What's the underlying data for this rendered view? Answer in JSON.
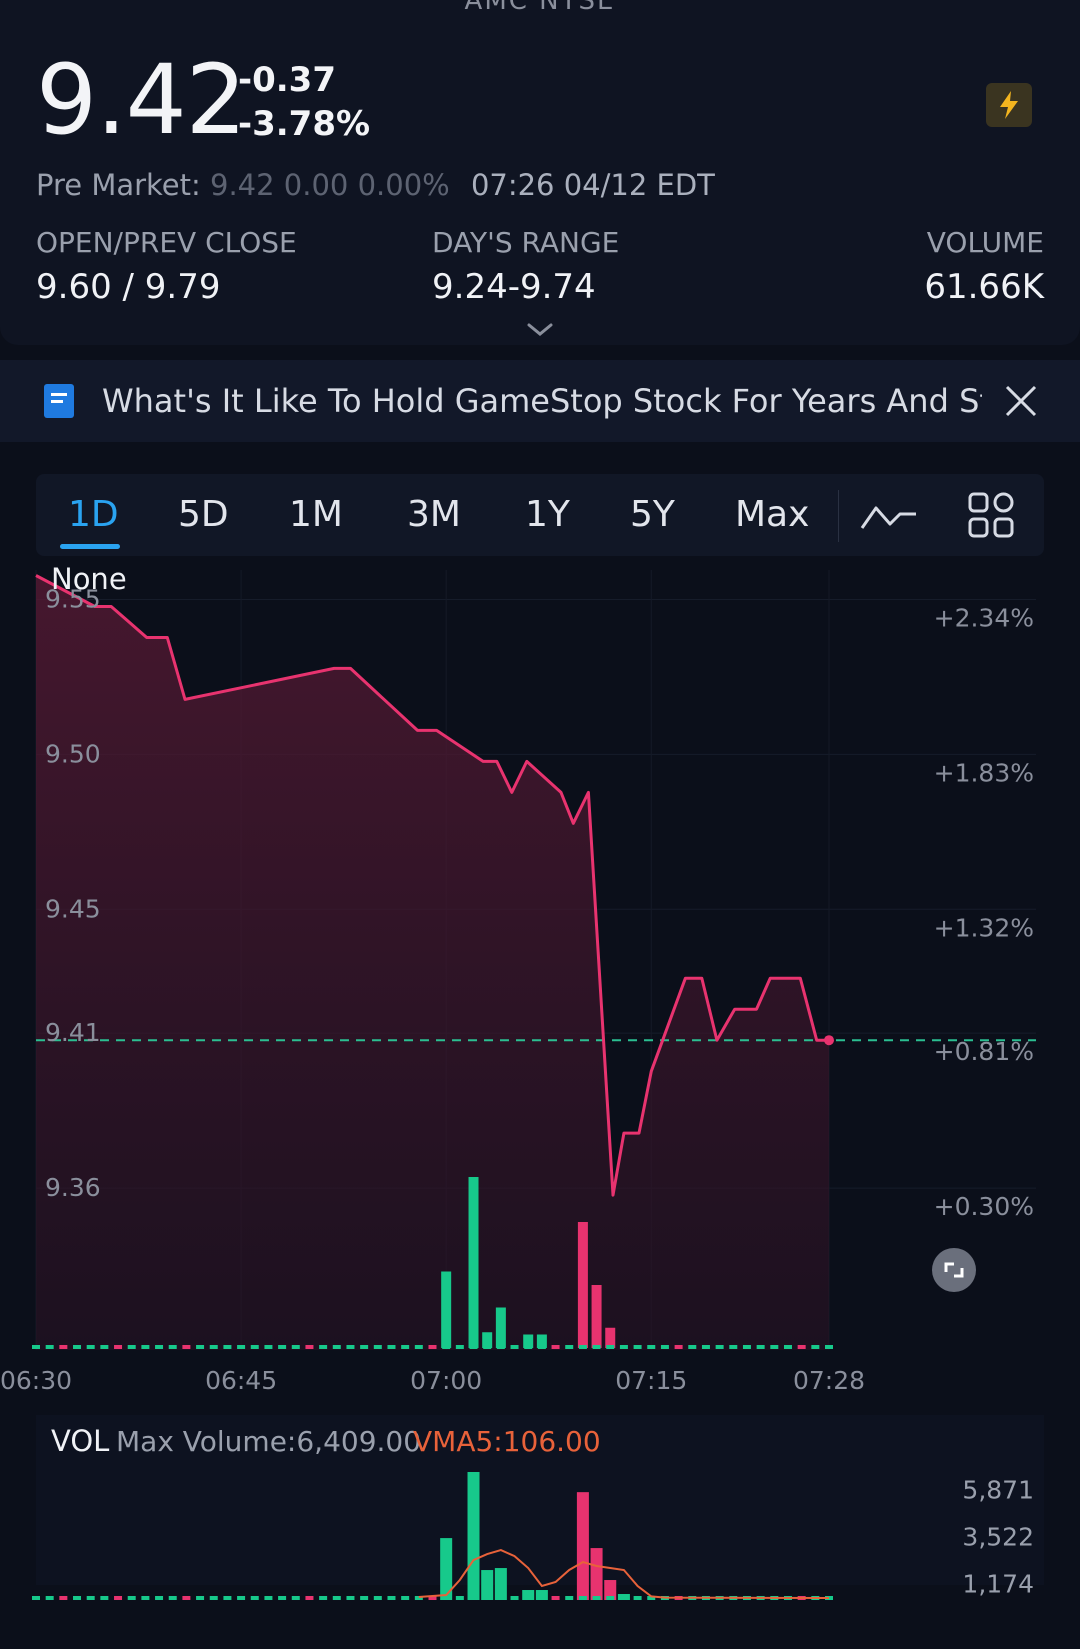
{
  "header": {
    "ticker": "AMC  NYSE"
  },
  "quote": {
    "price": "9.42",
    "change": "-0.37",
    "change_pct": "-3.78%",
    "premarket_label": "Pre Market:",
    "premarket_values": "9.42 0.00 0.00%",
    "premarket_time": "07:26 04/12 EDT"
  },
  "stats": {
    "open_prev_label": "OPEN/PREV CLOSE",
    "open_prev_value": "9.60 / 9.79",
    "range_label": "DAY'S RANGE",
    "range_value": "9.24-9.74",
    "volume_label": "VOLUME",
    "volume_value": "61.66K"
  },
  "news": {
    "headline": "What's It Like To Hold GameStop Stock For Years And Still"
  },
  "tabs": [
    "1D",
    "5D",
    "1M",
    "3M",
    "1Y",
    "5Y",
    "Max"
  ],
  "active_tab": "1D",
  "icons": {
    "bolt": "lightning-bolt-icon",
    "news": "document-icon",
    "close": "close-icon",
    "line_style": "line-chart-icon",
    "grid": "grid-icon",
    "fullscreen": "fullscreen-icon",
    "expand": "chevron-down-icon"
  },
  "colors": {
    "line": "#e8336f",
    "up": "#17c98b",
    "down": "#e8336f",
    "vma": "#e8623a",
    "accent": "#2aa3f0",
    "bolt": "#f3b51f"
  },
  "chart_data": [
    {
      "type": "line",
      "legend_label": "None",
      "x_tick_labels": [
        "06:30",
        "06:45",
        "07:00",
        "07:15",
        "07:28"
      ],
      "x_tick_minutes": [
        0,
        15,
        30,
        45,
        58
      ],
      "y_tick_labels": [
        "9.55",
        "9.50",
        "9.45",
        "9.41",
        "9.36"
      ],
      "y_tick_values": [
        9.55,
        9.5,
        9.45,
        9.41,
        9.36
      ],
      "y_right_tick_labels": [
        "+2.34%",
        "+1.83%",
        "+1.32%",
        "+0.81%",
        "+0.30%"
      ],
      "ylim": [
        9.32,
        9.575
      ],
      "reference_line": 9.42,
      "grid": true,
      "series": [
        {
          "x": [
            0,
            4.3,
            5.5,
            8.1,
            9.6,
            10.9,
            21.8,
            23.0,
            27.9,
            29.3,
            32.7,
            33.7,
            34.8,
            35.9,
            38.4,
            39.3,
            40.4,
            42.2,
            43.0,
            44.1,
            45.0,
            47.5,
            48.7,
            49.8,
            51.1,
            52.7,
            53.7,
            55.9,
            57.1,
            58.0
          ],
          "y": [
            9.57,
            9.56,
            9.56,
            9.55,
            9.55,
            9.53,
            9.54,
            9.54,
            9.52,
            9.52,
            9.51,
            9.51,
            9.5,
            9.51,
            9.5,
            9.49,
            9.5,
            9.37,
            9.39,
            9.39,
            9.41,
            9.44,
            9.44,
            9.42,
            9.43,
            9.43,
            9.44,
            9.44,
            9.42,
            9.42
          ]
        }
      ],
      "volume_overlay": {
        "x": [
          30,
          32,
          33,
          34,
          36,
          37,
          40,
          41,
          42
        ],
        "values": [
          1700,
          3800,
          350,
          900,
          300,
          300,
          2800,
          1400,
          450
        ],
        "direction": [
          "up",
          "up",
          "up",
          "up",
          "up",
          "up",
          "down",
          "down",
          "down"
        ]
      }
    },
    {
      "type": "bar",
      "label": "VOL",
      "max_volume_text": "Max Volume:6,409.00",
      "vma_text": "VMA5:106.00",
      "y_tick_labels": [
        "5,871",
        "3,522",
        "1,174"
      ],
      "y_tick_values": [
        5871,
        3522,
        1174
      ],
      "ylim": [
        0,
        6409
      ],
      "x": [
        30,
        32,
        33,
        34,
        36,
        37,
        40,
        41,
        42,
        43
      ],
      "values": [
        3100,
        6409,
        1500,
        1600,
        500,
        500,
        5400,
        2600,
        1000,
        300
      ],
      "direction": [
        "up",
        "up",
        "up",
        "up",
        "up",
        "up",
        "down",
        "down",
        "down",
        "up"
      ],
      "vma5": {
        "x": [
          28,
          30,
          31,
          32,
          33,
          34,
          35,
          36,
          37,
          38,
          39,
          40,
          41,
          42,
          43,
          44,
          45,
          46,
          58
        ],
        "y": [
          150,
          250,
          1000,
          2000,
          2300,
          2500,
          2200,
          1600,
          700,
          900,
          1500,
          1900,
          1700,
          1600,
          1500,
          700,
          180,
          120,
          100
        ]
      }
    }
  ]
}
